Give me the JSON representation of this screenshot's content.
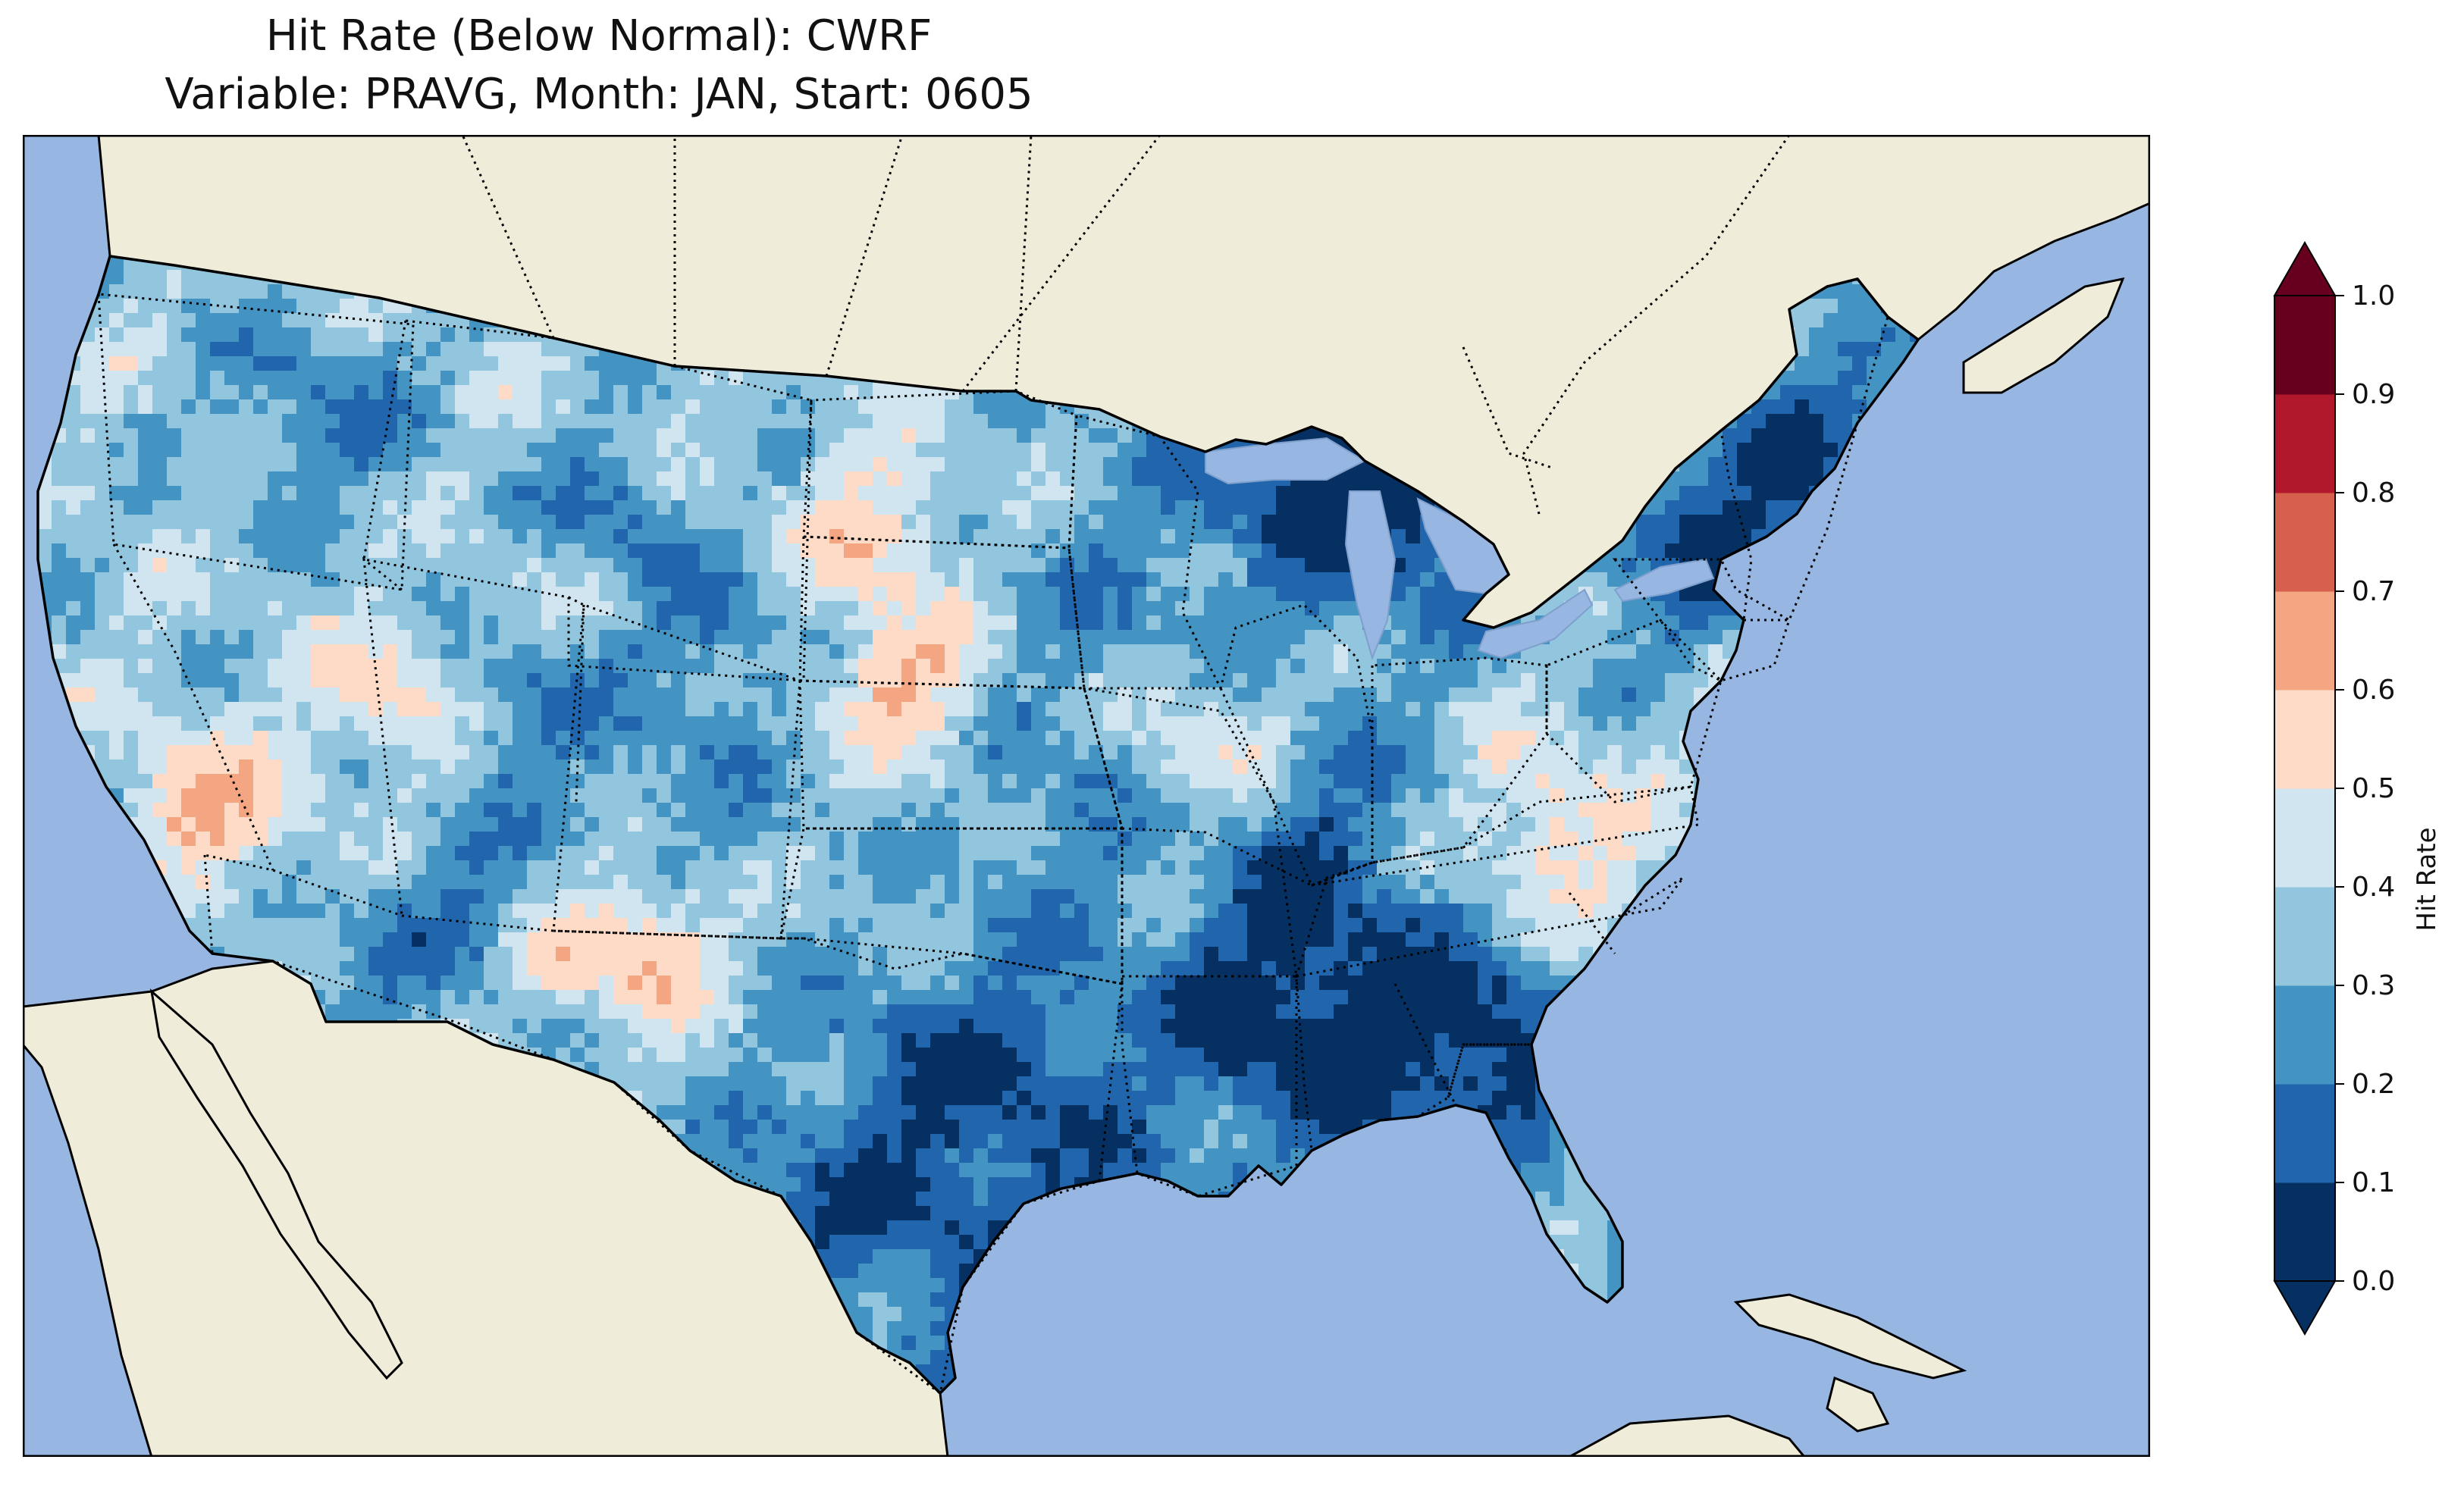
{
  "title": "Hit Rate (Below Normal): CWRF",
  "subtitle": "Variable: PRAVG, Month: JAN, Start: 0605",
  "colors": {
    "ocean": "#97b6e1",
    "land": "#efedd9",
    "coast": "#000000",
    "border": "#000000"
  },
  "colorbar": {
    "label": "Hit Rate",
    "ticks": [
      "0.0",
      "0.1",
      "0.2",
      "0.3",
      "0.4",
      "0.5",
      "0.6",
      "0.7",
      "0.8",
      "0.9",
      "1.0"
    ],
    "levels": [
      0.0,
      0.1,
      0.2,
      0.3,
      0.4,
      0.5,
      0.6,
      0.7,
      0.8,
      0.9,
      1.0
    ],
    "colors": [
      "#053061",
      "#2166ac",
      "#4393c3",
      "#92c5de",
      "#d1e5f0",
      "#fddbc7",
      "#f4a582",
      "#d6604d",
      "#b2182b",
      "#67001f"
    ],
    "extend": "both"
  },
  "map_data": {
    "type": "heatmap",
    "variable": "PRAVG",
    "month": "JAN",
    "start": "0605",
    "model": "CWRF",
    "region": "Contiguous United States",
    "value_range": [
      0.0,
      1.0
    ]
  }
}
